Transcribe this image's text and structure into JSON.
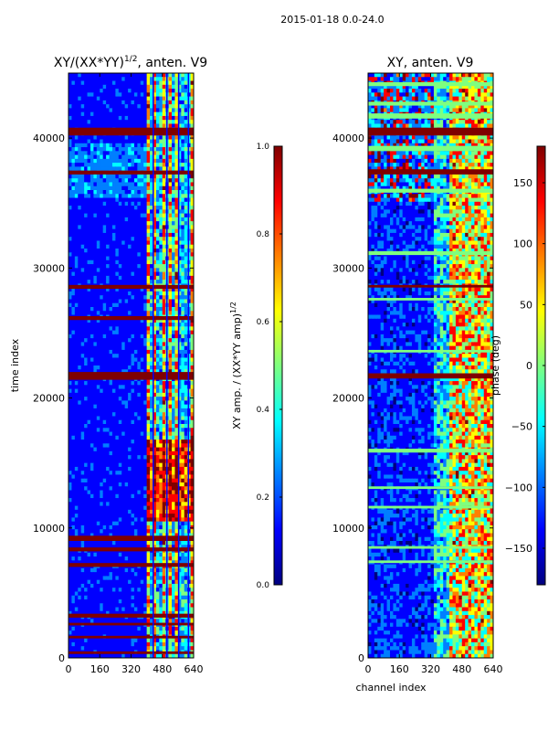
{
  "figure": {
    "suptitle": "2015-01-18 0.0-24.0"
  },
  "colors": {
    "jet": [
      "#00007f",
      "#0000ff",
      "#007fff",
      "#00ffff",
      "#7fff7f",
      "#ffff00",
      "#ff7f00",
      "#ff0000",
      "#7f0000"
    ],
    "axis": "#000000",
    "background": "#ffffff"
  },
  "chart_data": [
    {
      "type": "heatmap",
      "title_main": "XY/(XX*YY)",
      "title_sup": "1/2",
      "title_tail": ", anten. V9",
      "xlabel": "",
      "ylabel": "time index",
      "xlim": [
        0,
        640
      ],
      "ylim": [
        0,
        45000
      ],
      "xticks": [
        0,
        160,
        320,
        480,
        640
      ],
      "yticks": [
        0,
        10000,
        20000,
        30000,
        40000
      ],
      "colormap": "jet",
      "colorbar": {
        "label_main": "XY amp. / (XX*YY amp)",
        "label_sup": "1/2",
        "range": [
          0.0,
          1.0
        ],
        "ticks": [
          "0.0",
          "0.2",
          "0.4",
          "0.6",
          "0.8",
          "1.0"
        ]
      },
      "channel_ranges": {
        "low_band": [
          0,
          410
        ],
        "high_band": [
          410,
          640
        ]
      },
      "saturated_rows": [
        [
          40200,
          40800
        ],
        [
          37200,
          37500
        ],
        [
          28400,
          28700
        ],
        [
          26000,
          26300
        ],
        [
          21400,
          22000
        ],
        [
          9000,
          9400
        ],
        [
          8200,
          8500
        ],
        [
          7000,
          7300
        ],
        [
          3100,
          3400
        ],
        [
          2500,
          2700
        ],
        [
          1500,
          1700
        ],
        [
          300,
          500
        ]
      ],
      "bright_segments": [
        [
          16800,
          10500
        ],
        [
          5500,
          3000
        ]
      ]
    },
    {
      "type": "heatmap",
      "title": "XY, anten. V9",
      "xlabel": "channel index",
      "ylabel": "",
      "xlim": [
        0,
        640
      ],
      "ylim": [
        0,
        45000
      ],
      "xticks": [
        0,
        160,
        320,
        480,
        640
      ],
      "yticks": [
        0,
        10000,
        20000,
        30000,
        40000
      ],
      "colormap": "jet",
      "colorbar": {
        "label": "phase (deg)",
        "range": [
          -180,
          180
        ],
        "ticks": [
          "150",
          "100",
          "50",
          "0",
          "−50",
          "−100",
          "−150"
        ],
        "tick_values": [
          150,
          100,
          50,
          0,
          -50,
          -100,
          -150
        ]
      },
      "saturated_rows": [
        [
          40200,
          40800
        ],
        [
          37200,
          37600
        ],
        [
          28500,
          28700
        ],
        [
          21500,
          21900
        ]
      ],
      "cyan_rows": [
        [
          44000,
          44300
        ],
        [
          42500,
          42800
        ],
        [
          41500,
          41900
        ],
        [
          39000,
          39400
        ],
        [
          35800,
          36100
        ],
        [
          31000,
          31300
        ],
        [
          27500,
          27700
        ],
        [
          23500,
          23700
        ],
        [
          15800,
          16100
        ],
        [
          13000,
          13200
        ],
        [
          11500,
          11700
        ],
        [
          8400,
          8600
        ],
        [
          7300,
          7500
        ]
      ]
    }
  ]
}
